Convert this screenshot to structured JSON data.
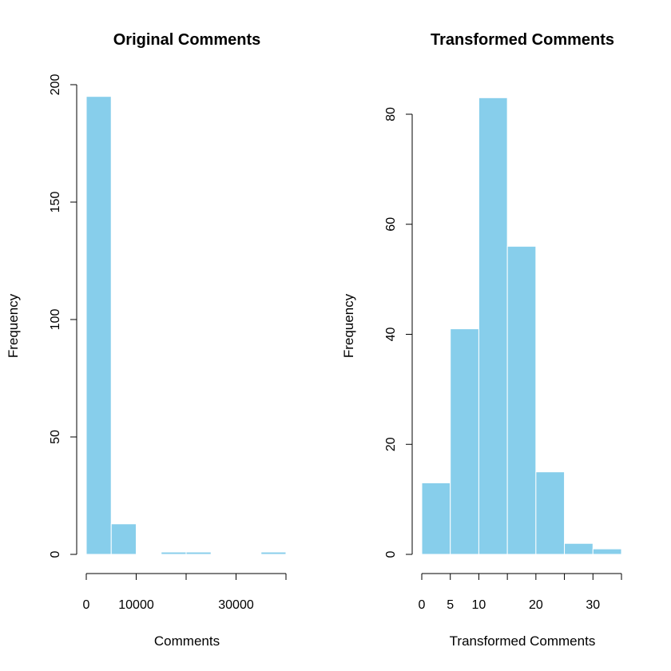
{
  "chart_data": [
    {
      "type": "bar",
      "title": "Original Comments",
      "xlabel": "Comments",
      "ylabel": "Frequency",
      "bins": [
        {
          "start": 0,
          "end": 5000,
          "count": 195
        },
        {
          "start": 5000,
          "end": 10000,
          "count": 13
        },
        {
          "start": 10000,
          "end": 15000,
          "count": 0
        },
        {
          "start": 15000,
          "end": 20000,
          "count": 1
        },
        {
          "start": 20000,
          "end": 25000,
          "count": 1
        },
        {
          "start": 25000,
          "end": 30000,
          "count": 0
        },
        {
          "start": 30000,
          "end": 35000,
          "count": 0
        },
        {
          "start": 35000,
          "end": 40000,
          "count": 1
        }
      ],
      "xlim": [
        0,
        40000
      ],
      "ylim": [
        0,
        200
      ],
      "x_ticks": [
        0,
        10000,
        20000,
        30000,
        40000
      ],
      "x_tick_labels": [
        "0",
        "10000",
        "",
        "30000",
        ""
      ],
      "y_ticks": [
        0,
        50,
        100,
        150,
        200
      ],
      "y_tick_labels": [
        "0",
        "50",
        "100",
        "150",
        "200"
      ],
      "bar_color": "#87ceeb",
      "bar_edge_color": "#ffffff",
      "grid": false
    },
    {
      "type": "bar",
      "title": "Transformed Comments",
      "xlabel": "Transformed Comments",
      "ylabel": "Frequency",
      "bins": [
        {
          "start": 0,
          "end": 5,
          "count": 13
        },
        {
          "start": 5,
          "end": 10,
          "count": 41
        },
        {
          "start": 10,
          "end": 15,
          "count": 83
        },
        {
          "start": 15,
          "end": 20,
          "count": 56
        },
        {
          "start": 20,
          "end": 25,
          "count": 15
        },
        {
          "start": 25,
          "end": 30,
          "count": 2
        },
        {
          "start": 30,
          "end": 35,
          "count": 1
        }
      ],
      "xlim": [
        0,
        35
      ],
      "ylim": [
        0,
        80
      ],
      "x_ticks": [
        0,
        5,
        10,
        15,
        20,
        25,
        30,
        35
      ],
      "x_tick_labels": [
        "0",
        "5",
        "10",
        "",
        "20",
        "",
        "30",
        ""
      ],
      "y_ticks": [
        0,
        20,
        40,
        60,
        80
      ],
      "y_tick_labels": [
        "0",
        "20",
        "40",
        "60",
        "80"
      ],
      "bar_color": "#87ceeb",
      "bar_edge_color": "#ffffff",
      "grid": false
    }
  ]
}
